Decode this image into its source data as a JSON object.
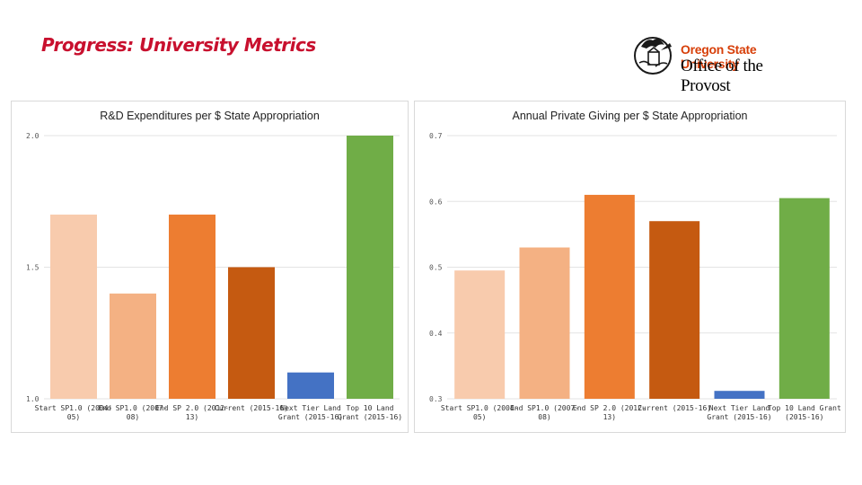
{
  "header": {
    "title": "Progress: University Metrics",
    "logo": {
      "university": "Oregon State University",
      "office": "Office of the Provost"
    }
  },
  "colors": {
    "title": "#c8102e",
    "logo_orange": "#d73f09",
    "grid": "#e3e3e3"
  },
  "chart_data": [
    {
      "type": "bar",
      "title": "R&D Expenditures per $ State Appropriation",
      "xlabel": "",
      "ylabel": "",
      "ylim": [
        1.0,
        2.0
      ],
      "yticks": [
        "1.0",
        "1.5",
        "2.0"
      ],
      "grid": true,
      "categories": [
        [
          "Start SP1.0 (2004-",
          "05)"
        ],
        [
          "End SP1.0 (2007-",
          "08)"
        ],
        [
          "End SP 2.0 (2012-",
          "13)"
        ],
        [
          "Current (2015-16)"
        ],
        [
          "Next Tier Land",
          "Grant (2015-16)"
        ],
        [
          "Top 10 Land",
          "Grant (2015-16)"
        ]
      ],
      "values": [
        1.7,
        1.4,
        1.7,
        1.5,
        1.1,
        2.0
      ],
      "colors": [
        "#f8cbad",
        "#f4b183",
        "#ed7d31",
        "#c55a11",
        "#4472c4",
        "#70ad47"
      ]
    },
    {
      "type": "bar",
      "title": "Annual Private Giving per $ State Appropriation",
      "xlabel": "",
      "ylabel": "",
      "ylim": [
        0.3,
        0.7
      ],
      "yticks": [
        "0.3",
        "0.4",
        "0.5",
        "0.6",
        "0.7"
      ],
      "grid": true,
      "categories": [
        [
          "Start SP1.0 (2004-",
          "05)"
        ],
        [
          "End SP1.0 (2007-",
          "08)"
        ],
        [
          "End SP 2.0 (2012-",
          "13)"
        ],
        [
          "Current (2015-16)"
        ],
        [
          "Next Tier Land",
          "Grant (2015-16)"
        ],
        [
          "Top 10 Land Grant",
          "(2015-16)"
        ]
      ],
      "values": [
        0.495,
        0.53,
        0.61,
        0.57,
        0.312,
        0.605
      ],
      "colors": [
        "#f8cbad",
        "#f4b183",
        "#ed7d31",
        "#c55a11",
        "#4472c4",
        "#70ad47"
      ]
    }
  ]
}
